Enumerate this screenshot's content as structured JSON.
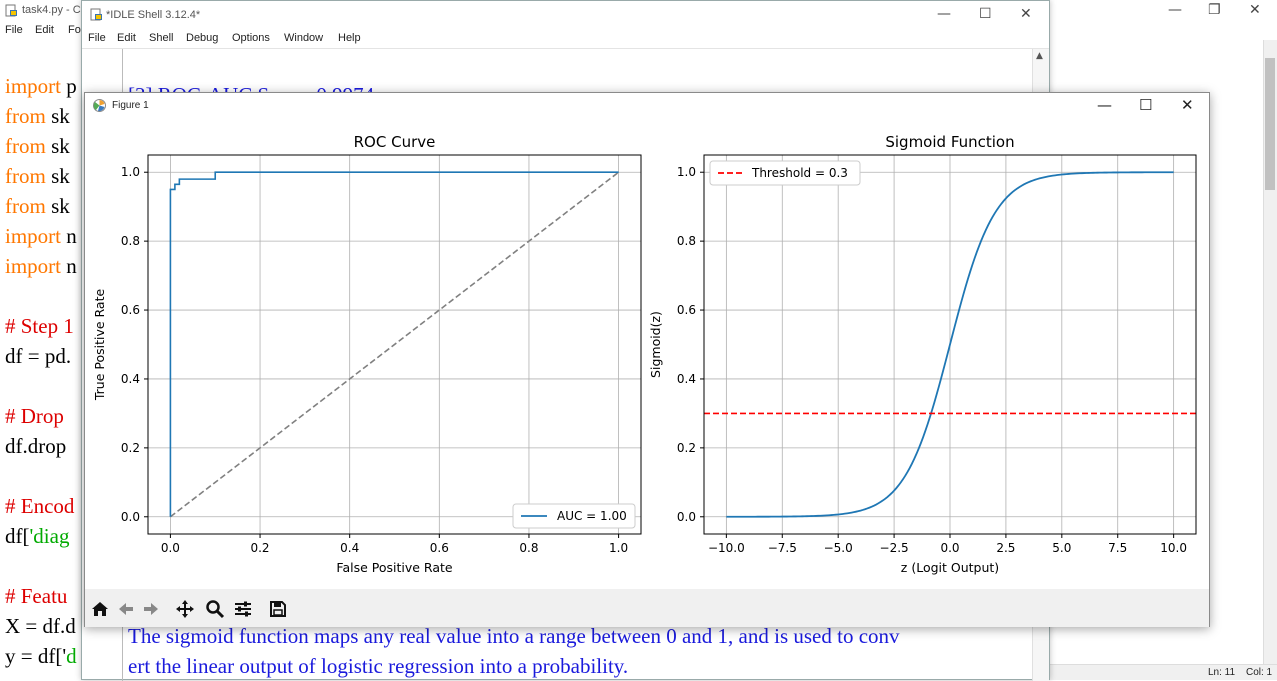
{
  "editor": {
    "title": "task4.py - C",
    "menu": [
      "File",
      "Edit",
      "Fo"
    ],
    "code_lines": [
      {
        "parts": [
          {
            "t": "import ",
            "c": "kw"
          },
          {
            "t": "p",
            "c": "df"
          }
        ]
      },
      {
        "parts": [
          {
            "t": "from ",
            "c": "kw"
          },
          {
            "t": "sk",
            "c": "df"
          }
        ]
      },
      {
        "parts": [
          {
            "t": "from ",
            "c": "kw"
          },
          {
            "t": "sk",
            "c": "df"
          }
        ]
      },
      {
        "parts": [
          {
            "t": "from ",
            "c": "kw"
          },
          {
            "t": "sk",
            "c": "df"
          }
        ]
      },
      {
        "parts": [
          {
            "t": "from ",
            "c": "kw"
          },
          {
            "t": "sk",
            "c": "df"
          }
        ]
      },
      {
        "parts": [
          {
            "t": "import ",
            "c": "kw"
          },
          {
            "t": "n",
            "c": "df"
          }
        ]
      },
      {
        "parts": [
          {
            "t": "import ",
            "c": "kw"
          },
          {
            "t": "n",
            "c": "df"
          }
        ]
      },
      {
        "parts": []
      },
      {
        "parts": [
          {
            "t": "# Step 1",
            "c": "cm"
          }
        ]
      },
      {
        "parts": [
          {
            "t": "df = pd.",
            "c": "df"
          }
        ]
      },
      {
        "parts": []
      },
      {
        "parts": [
          {
            "t": "# Drop",
            "c": "cm"
          }
        ]
      },
      {
        "parts": [
          {
            "t": "df.drop",
            "c": "df"
          }
        ]
      },
      {
        "parts": []
      },
      {
        "parts": [
          {
            "t": "# Encod",
            "c": "cm"
          }
        ]
      },
      {
        "parts": [
          {
            "t": "df[",
            "c": "df"
          },
          {
            "t": "'diag",
            "c": "st"
          }
        ]
      },
      {
        "parts": []
      },
      {
        "parts": [
          {
            "t": "# Featu",
            "c": "cm"
          }
        ]
      },
      {
        "parts": [
          {
            "t": "X = df.d",
            "c": "df"
          }
        ]
      },
      {
        "parts": [
          {
            "t": "y = df['",
            "c": "df"
          },
          {
            "t": "d",
            "c": "st"
          }
        ]
      }
    ],
    "status": {
      "line": "Ln: 11",
      "col": "Col: 1"
    }
  },
  "shell": {
    "title": "*IDLE Shell 3.12.4*",
    "menu": [
      "File",
      "Edit",
      "Shell",
      "Debug",
      "Options",
      "Window",
      "Help"
    ],
    "top_text": "[3] ROC-AUC Score: 0.9974",
    "bottom_text_1": "The sigmoid function maps any real value into a range between 0 and 1, and is used to conv",
    "bottom_text_2": "ert the linear output of logistic regression into a probability."
  },
  "figure": {
    "title": "Figure 1",
    "toolbar": [
      "home-icon",
      "back-icon",
      "forward-icon",
      "pan-icon",
      "zoom-icon",
      "configure-icon",
      "save-icon"
    ],
    "colors": {
      "series": "#1f77b4",
      "diagonal": "#808080",
      "threshold": "#ff0000",
      "toolbar_bg": "#f0f0f0"
    }
  },
  "chart_data": [
    {
      "type": "line",
      "title": "ROC Curve",
      "xlabel": "False Positive Rate",
      "ylabel": "True Positive Rate",
      "xlim": [
        -0.05,
        1.05
      ],
      "ylim": [
        -0.05,
        1.05
      ],
      "xticks": [
        "0.0",
        "0.2",
        "0.4",
        "0.6",
        "0.8",
        "1.0"
      ],
      "yticks": [
        "0.0",
        "0.2",
        "0.4",
        "0.6",
        "0.8",
        "1.0"
      ],
      "grid": true,
      "legend": "lower right",
      "series": [
        {
          "name": "AUC = 1.00",
          "x": [
            0,
            0,
            0.01,
            0.01,
            0.02,
            0.02,
            0.06,
            0.1,
            0.1,
            1.0
          ],
          "y": [
            0,
            0.95,
            0.95,
            0.965,
            0.965,
            0.98,
            0.98,
            0.98,
            1.0,
            1.0
          ]
        },
        {
          "x": [
            0,
            1
          ],
          "y": [
            0,
            1
          ],
          "style": "dashed"
        }
      ]
    },
    {
      "type": "line",
      "title": "Sigmoid Function",
      "xlabel": "z (Logit Output)",
      "ylabel": "Sigmoid(z)",
      "xlim": [
        -11,
        11
      ],
      "ylim": [
        -0.05,
        1.05
      ],
      "xticks": [
        "−10.0",
        "−7.5",
        "−5.0",
        "−2.5",
        "0.0",
        "2.5",
        "5.0",
        "7.5",
        "10.0"
      ],
      "yticks": [
        "0.0",
        "0.2",
        "0.4",
        "0.6",
        "0.8",
        "1.0"
      ],
      "grid": true,
      "legend": "upper left",
      "series": [
        {
          "function": "1/(1+exp(-z))",
          "x_range": [
            -10,
            10
          ]
        },
        {
          "name": "Threshold = 0.3",
          "y": 0.3,
          "style": "dashed"
        }
      ]
    }
  ]
}
